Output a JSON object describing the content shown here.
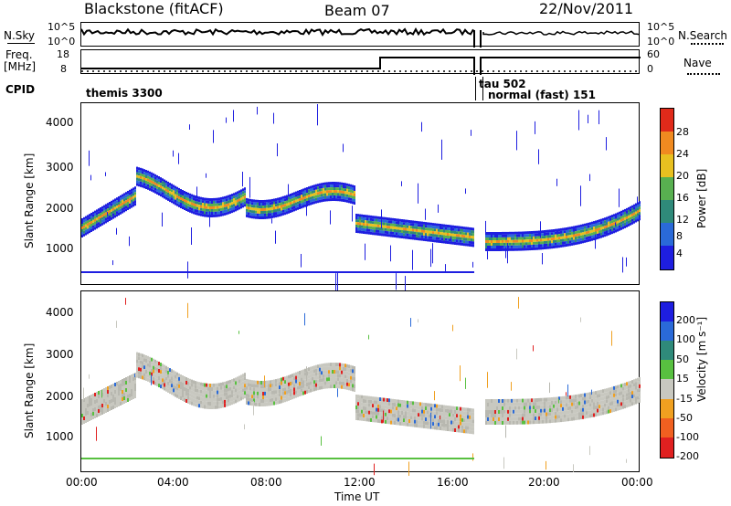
{
  "header": {
    "station": "Blackstone (fitACF)",
    "beam": "Beam 07",
    "date": "22/Nov/2011"
  },
  "noise_panel": {
    "left_label": "N.Sky",
    "right_label": "N.Search",
    "left_ticks": [
      "10^5",
      "10^0"
    ],
    "right_ticks": [
      "10^5",
      "10^0"
    ]
  },
  "freq_panel": {
    "left_label_top": "Freq.",
    "left_label_bottom": "[MHz]",
    "right_label": "Nave",
    "left_ticks": [
      "18",
      "8"
    ],
    "right_ticks": [
      "60",
      "0"
    ]
  },
  "cpid_panel": {
    "label": "CPID",
    "segments": [
      "themis 3300",
      "tau 502",
      "normal (fast) 151"
    ]
  },
  "chart_data": [
    {
      "type": "heatmap",
      "title": "",
      "ylabel": "Slant Range [km]",
      "xlabel": "",
      "y_ticks": [
        "1000",
        "2000",
        "3000",
        "4000"
      ],
      "ylim": [
        300,
        4500
      ],
      "colorbar": {
        "label": "Power [dB]",
        "ticks": [
          "4",
          "8",
          "12",
          "16",
          "20",
          "24",
          "28"
        ],
        "colors": [
          "#1e1ee0",
          "#2a6ad8",
          "#2f8a7a",
          "#58b050",
          "#e8c020",
          "#f08a20",
          "#e02a1a"
        ]
      }
    },
    {
      "type": "heatmap",
      "title": "",
      "ylabel": "Slant Range [km]",
      "xlabel": "Time UT",
      "x_ticks": [
        "00:00",
        "04:00",
        "08:00",
        "12:00",
        "16:00",
        "20:00",
        "00:00"
      ],
      "y_ticks": [
        "1000",
        "2000",
        "3000",
        "4000"
      ],
      "ylim": [
        300,
        4500
      ],
      "colorbar": {
        "label": "Velocity [m s⁻¹]",
        "ticks": [
          "200",
          "100",
          "50",
          "15",
          "-15",
          "-50",
          "-100",
          "-200"
        ],
        "colors": [
          "#1e1ee0",
          "#2a6ad8",
          "#2f8a7a",
          "#58c040",
          "#c8c8c0",
          "#f0a020",
          "#f06020",
          "#e02020"
        ]
      }
    }
  ]
}
